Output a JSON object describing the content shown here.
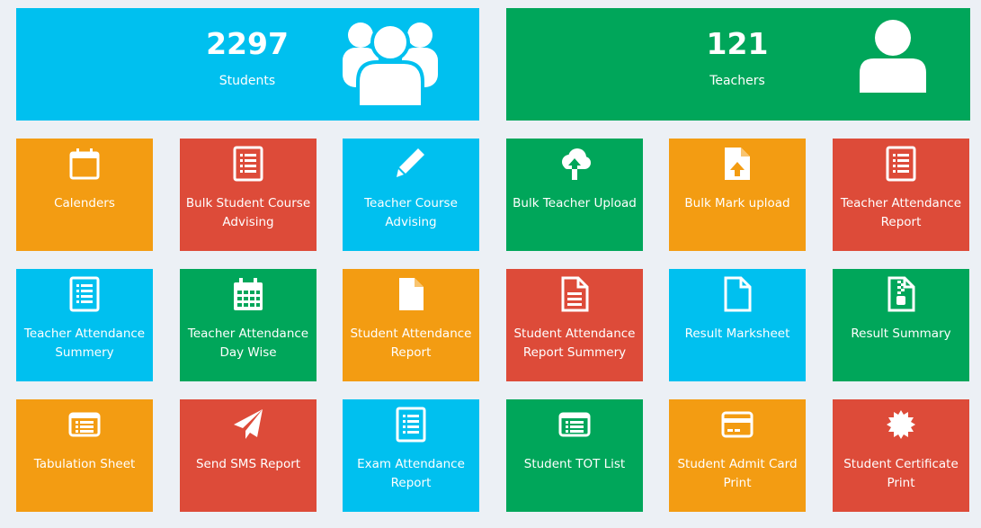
{
  "stats": {
    "students": {
      "count": "2297",
      "label": "Students",
      "icon": "users-icon"
    },
    "teachers": {
      "count": "121",
      "label": "Teachers",
      "icon": "user-icon"
    }
  },
  "tiles": [
    {
      "label": "Calenders",
      "icon": "calendar-icon",
      "color": "#f39c12"
    },
    {
      "label": "Bulk Student Course Advising",
      "icon": "list-document-icon",
      "color": "#dd4b39"
    },
    {
      "label": "Teacher Course Advising",
      "icon": "pencil-icon",
      "color": "#00c0ef"
    },
    {
      "label": "Bulk Teacher Upload",
      "icon": "cloud-upload-icon",
      "color": "#00a65a"
    },
    {
      "label": "Bulk Mark upload",
      "icon": "file-upload-icon",
      "color": "#f39c12"
    },
    {
      "label": "Teacher Attendance Report",
      "icon": "list-document-icon",
      "color": "#dd4b39"
    },
    {
      "label": "Teacher Attendance Summery",
      "icon": "list-document-icon",
      "color": "#00c0ef"
    },
    {
      "label": "Teacher Attendance Day Wise",
      "icon": "calendar-grid-icon",
      "color": "#00a65a"
    },
    {
      "label": "Student Attendance Report",
      "icon": "file-icon",
      "color": "#f39c12"
    },
    {
      "label": "Student Attendance Report Summery",
      "icon": "file-text-icon",
      "color": "#dd4b39"
    },
    {
      "label": "Result Marksheet",
      "icon": "file-outline-icon",
      "color": "#00c0ef"
    },
    {
      "label": "Result Summary",
      "icon": "file-zip-icon",
      "color": "#00a65a"
    },
    {
      "label": "Tabulation Sheet",
      "icon": "list-alt-icon",
      "color": "#f39c12"
    },
    {
      "label": "Send SMS Report",
      "icon": "paper-plane-icon",
      "color": "#dd4b39"
    },
    {
      "label": "Exam Attendance Report",
      "icon": "list-document-icon",
      "color": "#00c0ef"
    },
    {
      "label": "Student TOT List",
      "icon": "list-alt-icon",
      "color": "#00a65a"
    },
    {
      "label": "Student Admit Card Print",
      "icon": "credit-card-icon",
      "color": "#f39c12"
    },
    {
      "label": "Student Certificate Print",
      "icon": "certificate-icon",
      "color": "#dd4b39"
    }
  ]
}
